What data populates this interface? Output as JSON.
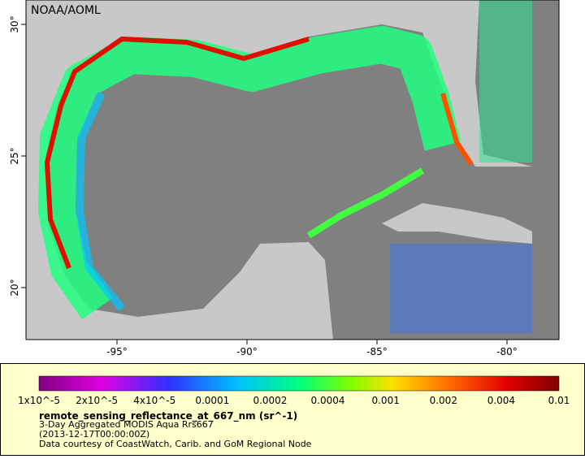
{
  "map": {
    "credit": "NOAA/AOML",
    "lat_ticks": [
      {
        "value": 30,
        "label": "30°"
      },
      {
        "value": 25,
        "label": "25°"
      },
      {
        "value": 20,
        "label": "20°"
      }
    ],
    "lon_ticks": [
      {
        "value": -95,
        "label": "-95°"
      },
      {
        "value": -90,
        "label": "-90°"
      },
      {
        "value": -85,
        "label": "-85°"
      },
      {
        "value": -80,
        "label": "-80°"
      }
    ]
  },
  "legend": {
    "ticks": [
      "1x10^-5",
      "2x10^-5",
      "4x10^-5",
      "0.0001",
      "0.0002",
      "0.0004",
      "0.001",
      "0.002",
      "0.004",
      "0.01"
    ],
    "title": "remote_sensing_reflectance_at_667_nm (sr^-1)",
    "lines": [
      "3-Day Aggregated MODIS Aqua Rrs667",
      "(2013-12-17T00:00:00Z)",
      "Data courtesy of CoastWatch, Carib. and GoM Regional Node"
    ]
  }
}
